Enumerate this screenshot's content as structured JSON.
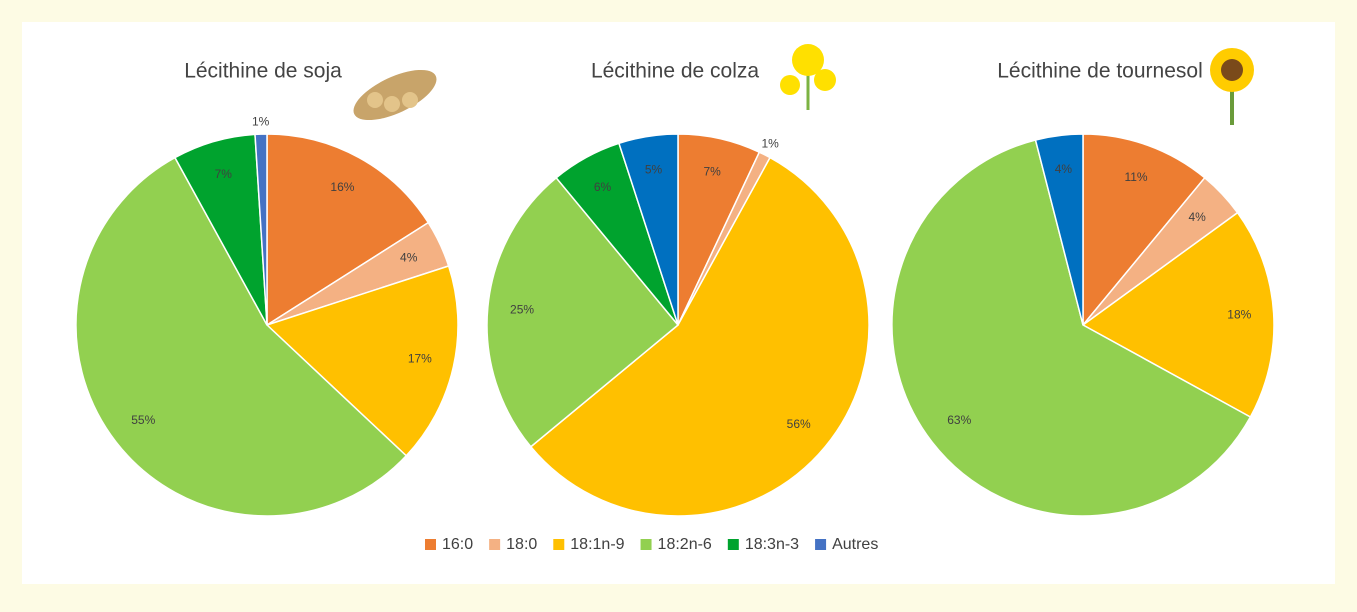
{
  "chart_data": [
    {
      "type": "pie",
      "title": "Lécithine de soja",
      "categories": [
        "16:0",
        "18:0",
        "18:1n-9",
        "18:2n-6",
        "18:3n-3",
        "Autres"
      ],
      "colors": [
        "#ed7d31",
        "#f4b183",
        "#ffc000",
        "#92d050",
        "#00a32e",
        "#4472c4"
      ],
      "values": [
        16,
        4,
        17,
        55,
        7,
        1
      ],
      "value_labels": [
        "16%",
        "4%",
        "17%",
        "55%",
        "7%",
        "1%"
      ]
    },
    {
      "type": "pie",
      "title": "Lécithine de colza",
      "categories": [
        "16:0",
        "18:0",
        "18:1n-9",
        "18:2n-6",
        "18:3n-3",
        "Autres"
      ],
      "colors": [
        "#ed7d31",
        "#f4b183",
        "#ffc000",
        "#92d050",
        "#00a32e",
        "#0070c0"
      ],
      "values": [
        7,
        1,
        56,
        25,
        6,
        5
      ],
      "value_labels": [
        "7%",
        "1%",
        "56%",
        "25%",
        "6%",
        "5%"
      ]
    },
    {
      "type": "pie",
      "title": "Lécithine de tournesol",
      "categories": [
        "16:0",
        "18:0",
        "18:1n-9",
        "18:2n-6",
        "18:3n-3",
        "Autres"
      ],
      "colors": [
        "#ed7d31",
        "#f4b183",
        "#ffc000",
        "#92d050",
        "#00a32e",
        "#0070c0"
      ],
      "values": [
        11,
        4,
        18,
        63,
        0,
        4
      ],
      "value_labels": [
        "11%",
        "4%",
        "18%",
        "63%",
        null,
        "4%"
      ]
    }
  ]
}
